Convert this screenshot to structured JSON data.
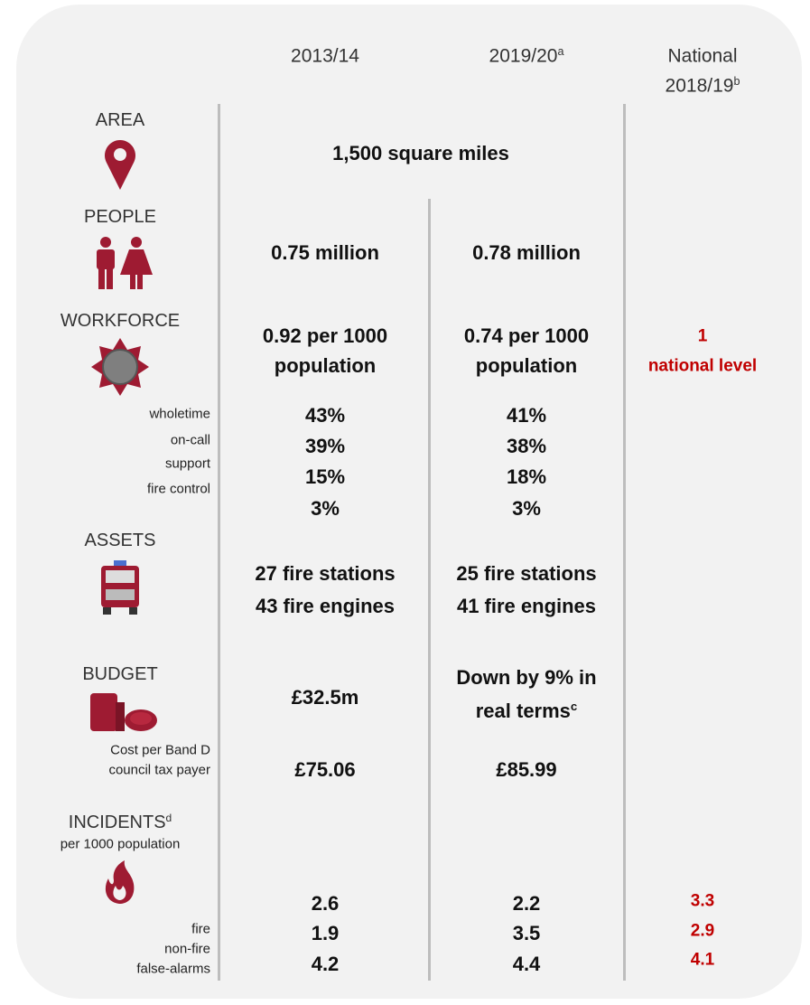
{
  "columns": [
    {
      "lines": [
        "2013/14"
      ]
    },
    {
      "lines": [
        "2019/20"
      ],
      "note": "a"
    },
    {
      "lines": [
        "National",
        "2018/19"
      ],
      "note": "b"
    }
  ],
  "area": {
    "label": "AREA",
    "value": "1,500 square miles"
  },
  "people": {
    "label": "PEOPLE",
    "values": [
      "0.75 million",
      "0.78 million"
    ]
  },
  "workforce": {
    "label": "WORKFORCE",
    "values": [
      [
        "0.92 per 1000",
        "population"
      ],
      [
        "0.74 per 1000",
        "population"
      ]
    ],
    "national": [
      "1",
      "national level"
    ],
    "breakdown_labels": [
      "wholetime",
      "on-call",
      "support",
      "fire control"
    ],
    "breakdown": [
      [
        "43%",
        "39%",
        "15%",
        "3%"
      ],
      [
        "41%",
        "38%",
        "18%",
        "3%"
      ]
    ]
  },
  "assets": {
    "label": "ASSETS",
    "values": [
      [
        "27 fire stations",
        "43 fire engines"
      ],
      [
        "25 fire stations",
        "41 fire engines"
      ]
    ]
  },
  "budget": {
    "label": "BUDGET",
    "value_2013": "£32.5m",
    "value_2019": [
      "Down by 9% in",
      "real terms"
    ],
    "note": "c",
    "cost_label": [
      "Cost per Band D",
      "council tax payer"
    ],
    "cost": [
      "£75.06",
      "£85.99"
    ]
  },
  "incidents": {
    "label": "INCIDENTS",
    "note": "d",
    "sublabel": "per 1000 population",
    "type_labels": [
      "fire",
      "non-fire",
      "false-alarms"
    ],
    "values": [
      [
        "2.6",
        "1.9",
        "4.2"
      ],
      [
        "2.2",
        "3.5",
        "4.4"
      ]
    ],
    "national": [
      "3.3",
      "2.9",
      "4.1"
    ]
  }
}
